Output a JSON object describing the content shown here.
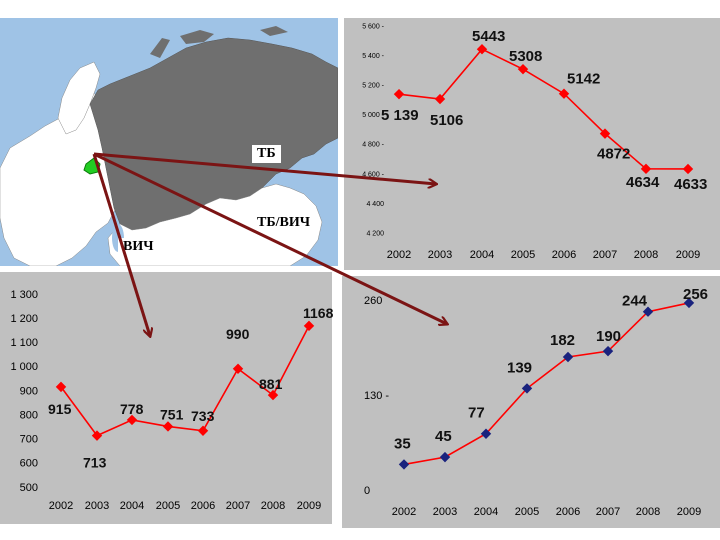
{
  "colors": {
    "line": "#ff0000",
    "marker_tb": "#ff0000",
    "marker_tbhiv": "#1a237e",
    "arrow": "#7b1414",
    "panel_bg": "#c0c0c0",
    "sea": "#9fc3e6",
    "land": "#ffffff",
    "russia": "#6f6f6f",
    "region_marker": "#22cc22"
  },
  "map": {
    "labels": {
      "tb": "ТБ",
      "tbhiv": "ТБ/ВИЧ",
      "hiv": "ВИЧ"
    }
  },
  "chart_data": [
    {
      "id": "tb",
      "type": "line",
      "x": [
        "2002",
        "2003",
        "2004",
        "2005",
        "2006",
        "2007",
        "2008",
        "2009"
      ],
      "values": [
        5139,
        5106,
        5443,
        5308,
        5142,
        4872,
        4634,
        4633
      ],
      "data_labels": [
        "5 139",
        "5106",
        "5443",
        "5308",
        "5142",
        "4872",
        "4634",
        "4633"
      ],
      "y_ticks": [
        "5 600 -",
        "5 400 -",
        "5 200 -",
        "5 000 -",
        "4 800 -",
        "4 600 -",
        "4 400",
        "4 200"
      ],
      "y_tick_values": [
        5600,
        5400,
        5200,
        5000,
        4800,
        4600,
        4400,
        4200
      ],
      "ylim": [
        4200,
        5600
      ],
      "marker": "diamond",
      "grid": false
    },
    {
      "id": "hiv",
      "type": "line",
      "x": [
        "2002",
        "2003",
        "2004",
        "2005",
        "2006",
        "2007",
        "2008",
        "2009"
      ],
      "values": [
        915,
        713,
        778,
        751,
        733,
        990,
        881,
        1168
      ],
      "data_labels": [
        "915",
        "713",
        "778",
        "751",
        "733",
        "990",
        "881",
        "1168"
      ],
      "y_ticks": [
        "1 300",
        "1 200",
        "1 100",
        "1 000",
        "900",
        "800",
        "700",
        "600",
        "500"
      ],
      "y_tick_values": [
        1300,
        1200,
        1100,
        1000,
        900,
        800,
        700,
        600,
        500
      ],
      "ylim": [
        500,
        1300
      ],
      "marker": "diamond",
      "grid": false
    },
    {
      "id": "tbhiv",
      "type": "line",
      "x": [
        "2002",
        "2003",
        "2004",
        "2005",
        "2006",
        "2007",
        "2008",
        "2009"
      ],
      "values": [
        35,
        45,
        77,
        139,
        182,
        190,
        244,
        256
      ],
      "data_labels": [
        "35",
        "45",
        "77",
        "139",
        "182",
        "190",
        "244",
        "256"
      ],
      "y_ticks": [
        "260",
        "130 -",
        "0"
      ],
      "y_tick_values": [
        260,
        130,
        0
      ],
      "ylim": [
        0,
        260
      ],
      "marker": "diamond",
      "grid": false
    }
  ]
}
